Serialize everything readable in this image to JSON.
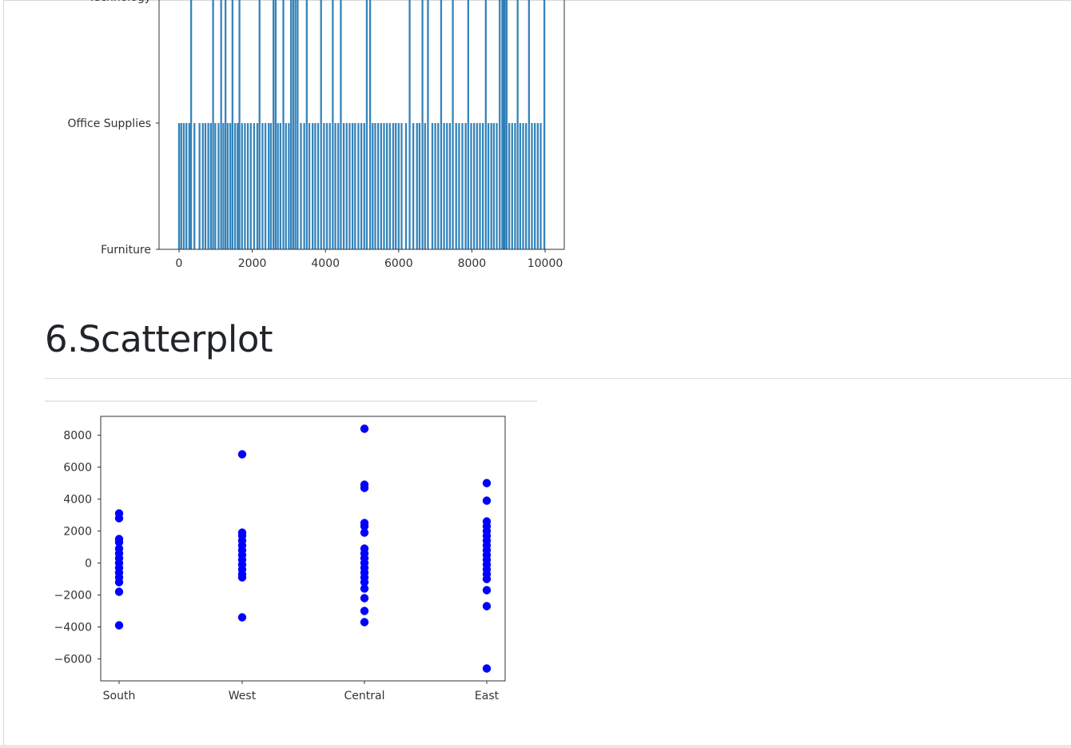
{
  "section": {
    "heading": "6.Scatterplot"
  },
  "colors": {
    "bar": "#1f77b4",
    "scatter": "#0000ff",
    "axis": "#333333"
  },
  "chart_data": [
    {
      "type": "bar",
      "title": "",
      "xlabel": "",
      "ylabel": "",
      "y_categories": [
        "Furniture",
        "Office Supplies",
        "Technology"
      ],
      "x_ticks": [
        0,
        2000,
        4000,
        6000,
        8000,
        10000
      ],
      "xlim": [
        -500,
        10500
      ],
      "grid": false,
      "bars": [
        {
          "x": 0,
          "v": 1
        },
        {
          "x": 60,
          "v": 1
        },
        {
          "x": 130,
          "v": 1
        },
        {
          "x": 200,
          "v": 1
        },
        {
          "x": 280,
          "v": 1
        },
        {
          "x": 330,
          "v": 2
        },
        {
          "x": 420,
          "v": 1
        },
        {
          "x": 560,
          "v": 1
        },
        {
          "x": 650,
          "v": 1
        },
        {
          "x": 720,
          "v": 1
        },
        {
          "x": 800,
          "v": 1
        },
        {
          "x": 870,
          "v": 1
        },
        {
          "x": 930,
          "v": 2
        },
        {
          "x": 990,
          "v": 1
        },
        {
          "x": 1080,
          "v": 1
        },
        {
          "x": 1150,
          "v": 2
        },
        {
          "x": 1210,
          "v": 1
        },
        {
          "x": 1270,
          "v": 2
        },
        {
          "x": 1330,
          "v": 1
        },
        {
          "x": 1400,
          "v": 1
        },
        {
          "x": 1460,
          "v": 2
        },
        {
          "x": 1530,
          "v": 1
        },
        {
          "x": 1600,
          "v": 1
        },
        {
          "x": 1650,
          "v": 2
        },
        {
          "x": 1720,
          "v": 1
        },
        {
          "x": 1800,
          "v": 1
        },
        {
          "x": 1880,
          "v": 1
        },
        {
          "x": 1960,
          "v": 1
        },
        {
          "x": 2050,
          "v": 1
        },
        {
          "x": 2140,
          "v": 1
        },
        {
          "x": 2200,
          "v": 2
        },
        {
          "x": 2280,
          "v": 1
        },
        {
          "x": 2360,
          "v": 1
        },
        {
          "x": 2450,
          "v": 1
        },
        {
          "x": 2510,
          "v": 1
        },
        {
          "x": 2580,
          "v": 2
        },
        {
          "x": 2640,
          "v": 2
        },
        {
          "x": 2700,
          "v": 1
        },
        {
          "x": 2770,
          "v": 1
        },
        {
          "x": 2850,
          "v": 2
        },
        {
          "x": 2920,
          "v": 1
        },
        {
          "x": 3000,
          "v": 1
        },
        {
          "x": 3060,
          "v": 2
        },
        {
          "x": 3120,
          "v": 2
        },
        {
          "x": 3180,
          "v": 2
        },
        {
          "x": 3240,
          "v": 2
        },
        {
          "x": 3330,
          "v": 1
        },
        {
          "x": 3420,
          "v": 1
        },
        {
          "x": 3490,
          "v": 2
        },
        {
          "x": 3560,
          "v": 1
        },
        {
          "x": 3650,
          "v": 1
        },
        {
          "x": 3720,
          "v": 1
        },
        {
          "x": 3800,
          "v": 1
        },
        {
          "x": 3880,
          "v": 2
        },
        {
          "x": 3960,
          "v": 1
        },
        {
          "x": 4040,
          "v": 1
        },
        {
          "x": 4120,
          "v": 1
        },
        {
          "x": 4200,
          "v": 2
        },
        {
          "x": 4270,
          "v": 1
        },
        {
          "x": 4350,
          "v": 1
        },
        {
          "x": 4420,
          "v": 2
        },
        {
          "x": 4500,
          "v": 1
        },
        {
          "x": 4580,
          "v": 1
        },
        {
          "x": 4660,
          "v": 1
        },
        {
          "x": 4740,
          "v": 1
        },
        {
          "x": 4810,
          "v": 1
        },
        {
          "x": 4900,
          "v": 1
        },
        {
          "x": 4980,
          "v": 1
        },
        {
          "x": 5060,
          "v": 1
        },
        {
          "x": 5130,
          "v": 2
        },
        {
          "x": 5220,
          "v": 2
        },
        {
          "x": 5290,
          "v": 1
        },
        {
          "x": 5360,
          "v": 1
        },
        {
          "x": 5440,
          "v": 1
        },
        {
          "x": 5520,
          "v": 1
        },
        {
          "x": 5600,
          "v": 1
        },
        {
          "x": 5680,
          "v": 1
        },
        {
          "x": 5760,
          "v": 1
        },
        {
          "x": 5850,
          "v": 1
        },
        {
          "x": 5920,
          "v": 1
        },
        {
          "x": 6000,
          "v": 1
        },
        {
          "x": 6080,
          "v": 1
        },
        {
          "x": 6200,
          "v": 1
        },
        {
          "x": 6300,
          "v": 2
        },
        {
          "x": 6400,
          "v": 1
        },
        {
          "x": 6500,
          "v": 1
        },
        {
          "x": 6570,
          "v": 1
        },
        {
          "x": 6650,
          "v": 2
        },
        {
          "x": 6720,
          "v": 1
        },
        {
          "x": 6800,
          "v": 2
        },
        {
          "x": 6920,
          "v": 1
        },
        {
          "x": 7000,
          "v": 1
        },
        {
          "x": 7080,
          "v": 1
        },
        {
          "x": 7160,
          "v": 2
        },
        {
          "x": 7240,
          "v": 1
        },
        {
          "x": 7320,
          "v": 1
        },
        {
          "x": 7400,
          "v": 1
        },
        {
          "x": 7480,
          "v": 2
        },
        {
          "x": 7570,
          "v": 1
        },
        {
          "x": 7650,
          "v": 1
        },
        {
          "x": 7740,
          "v": 1
        },
        {
          "x": 7830,
          "v": 1
        },
        {
          "x": 7900,
          "v": 2
        },
        {
          "x": 7980,
          "v": 1
        },
        {
          "x": 8060,
          "v": 1
        },
        {
          "x": 8140,
          "v": 1
        },
        {
          "x": 8220,
          "v": 1
        },
        {
          "x": 8300,
          "v": 1
        },
        {
          "x": 8380,
          "v": 2
        },
        {
          "x": 8450,
          "v": 1
        },
        {
          "x": 8530,
          "v": 1
        },
        {
          "x": 8600,
          "v": 1
        },
        {
          "x": 8680,
          "v": 1
        },
        {
          "x": 8760,
          "v": 2
        },
        {
          "x": 8830,
          "v": 2
        },
        {
          "x": 8870,
          "v": 2
        },
        {
          "x": 8900,
          "v": 2
        },
        {
          "x": 8950,
          "v": 2
        },
        {
          "x": 9020,
          "v": 1
        },
        {
          "x": 9100,
          "v": 1
        },
        {
          "x": 9180,
          "v": 1
        },
        {
          "x": 9250,
          "v": 2
        },
        {
          "x": 9320,
          "v": 1
        },
        {
          "x": 9400,
          "v": 1
        },
        {
          "x": 9480,
          "v": 1
        },
        {
          "x": 9560,
          "v": 2
        },
        {
          "x": 9640,
          "v": 1
        },
        {
          "x": 9720,
          "v": 1
        },
        {
          "x": 9800,
          "v": 1
        },
        {
          "x": 9880,
          "v": 1
        },
        {
          "x": 9980,
          "v": 2
        }
      ]
    },
    {
      "type": "scatter",
      "title": "",
      "xlabel": "",
      "ylabel": "",
      "categories": [
        "South",
        "West",
        "Central",
        "East"
      ],
      "y_ticks": [
        8000,
        6000,
        4000,
        2000,
        0,
        -2000,
        -4000,
        -6000
      ],
      "ylim": [
        -7400,
        8800
      ],
      "grid": false,
      "points": [
        {
          "c": "South",
          "y": 3100
        },
        {
          "c": "South",
          "y": 2800
        },
        {
          "c": "South",
          "y": 1500
        },
        {
          "c": "South",
          "y": 1300
        },
        {
          "c": "South",
          "y": 900
        },
        {
          "c": "South",
          "y": 600
        },
        {
          "c": "South",
          "y": 300
        },
        {
          "c": "South",
          "y": 0
        },
        {
          "c": "South",
          "y": -300
        },
        {
          "c": "South",
          "y": -600
        },
        {
          "c": "South",
          "y": -900
        },
        {
          "c": "South",
          "y": -1200
        },
        {
          "c": "South",
          "y": -1800
        },
        {
          "c": "South",
          "y": -3900
        },
        {
          "c": "West",
          "y": 6800
        },
        {
          "c": "West",
          "y": 1900
        },
        {
          "c": "West",
          "y": 1700
        },
        {
          "c": "West",
          "y": 1400
        },
        {
          "c": "West",
          "y": 1100
        },
        {
          "c": "West",
          "y": 800
        },
        {
          "c": "West",
          "y": 500
        },
        {
          "c": "West",
          "y": 200
        },
        {
          "c": "West",
          "y": -100
        },
        {
          "c": "West",
          "y": -400
        },
        {
          "c": "West",
          "y": -700
        },
        {
          "c": "West",
          "y": -900
        },
        {
          "c": "West",
          "y": -3400
        },
        {
          "c": "Central",
          "y": 8400
        },
        {
          "c": "Central",
          "y": 4900
        },
        {
          "c": "Central",
          "y": 4700
        },
        {
          "c": "Central",
          "y": 2500
        },
        {
          "c": "Central",
          "y": 2300
        },
        {
          "c": "Central",
          "y": 1900
        },
        {
          "c": "Central",
          "y": 900
        },
        {
          "c": "Central",
          "y": 600
        },
        {
          "c": "Central",
          "y": 300
        },
        {
          "c": "Central",
          "y": 0
        },
        {
          "c": "Central",
          "y": -300
        },
        {
          "c": "Central",
          "y": -600
        },
        {
          "c": "Central",
          "y": -900
        },
        {
          "c": "Central",
          "y": -1200
        },
        {
          "c": "Central",
          "y": -1600
        },
        {
          "c": "Central",
          "y": -2200
        },
        {
          "c": "Central",
          "y": -3000
        },
        {
          "c": "Central",
          "y": -3700
        },
        {
          "c": "East",
          "y": 5000
        },
        {
          "c": "East",
          "y": 3900
        },
        {
          "c": "East",
          "y": 2600
        },
        {
          "c": "East",
          "y": 2300
        },
        {
          "c": "East",
          "y": 2000
        },
        {
          "c": "East",
          "y": 1700
        },
        {
          "c": "East",
          "y": 1400
        },
        {
          "c": "East",
          "y": 1100
        },
        {
          "c": "East",
          "y": 800
        },
        {
          "c": "East",
          "y": 500
        },
        {
          "c": "East",
          "y": 200
        },
        {
          "c": "East",
          "y": -100
        },
        {
          "c": "East",
          "y": -400
        },
        {
          "c": "East",
          "y": -700
        },
        {
          "c": "East",
          "y": -1000
        },
        {
          "c": "East",
          "y": -1700
        },
        {
          "c": "East",
          "y": -2700
        },
        {
          "c": "East",
          "y": -6600
        }
      ]
    }
  ]
}
